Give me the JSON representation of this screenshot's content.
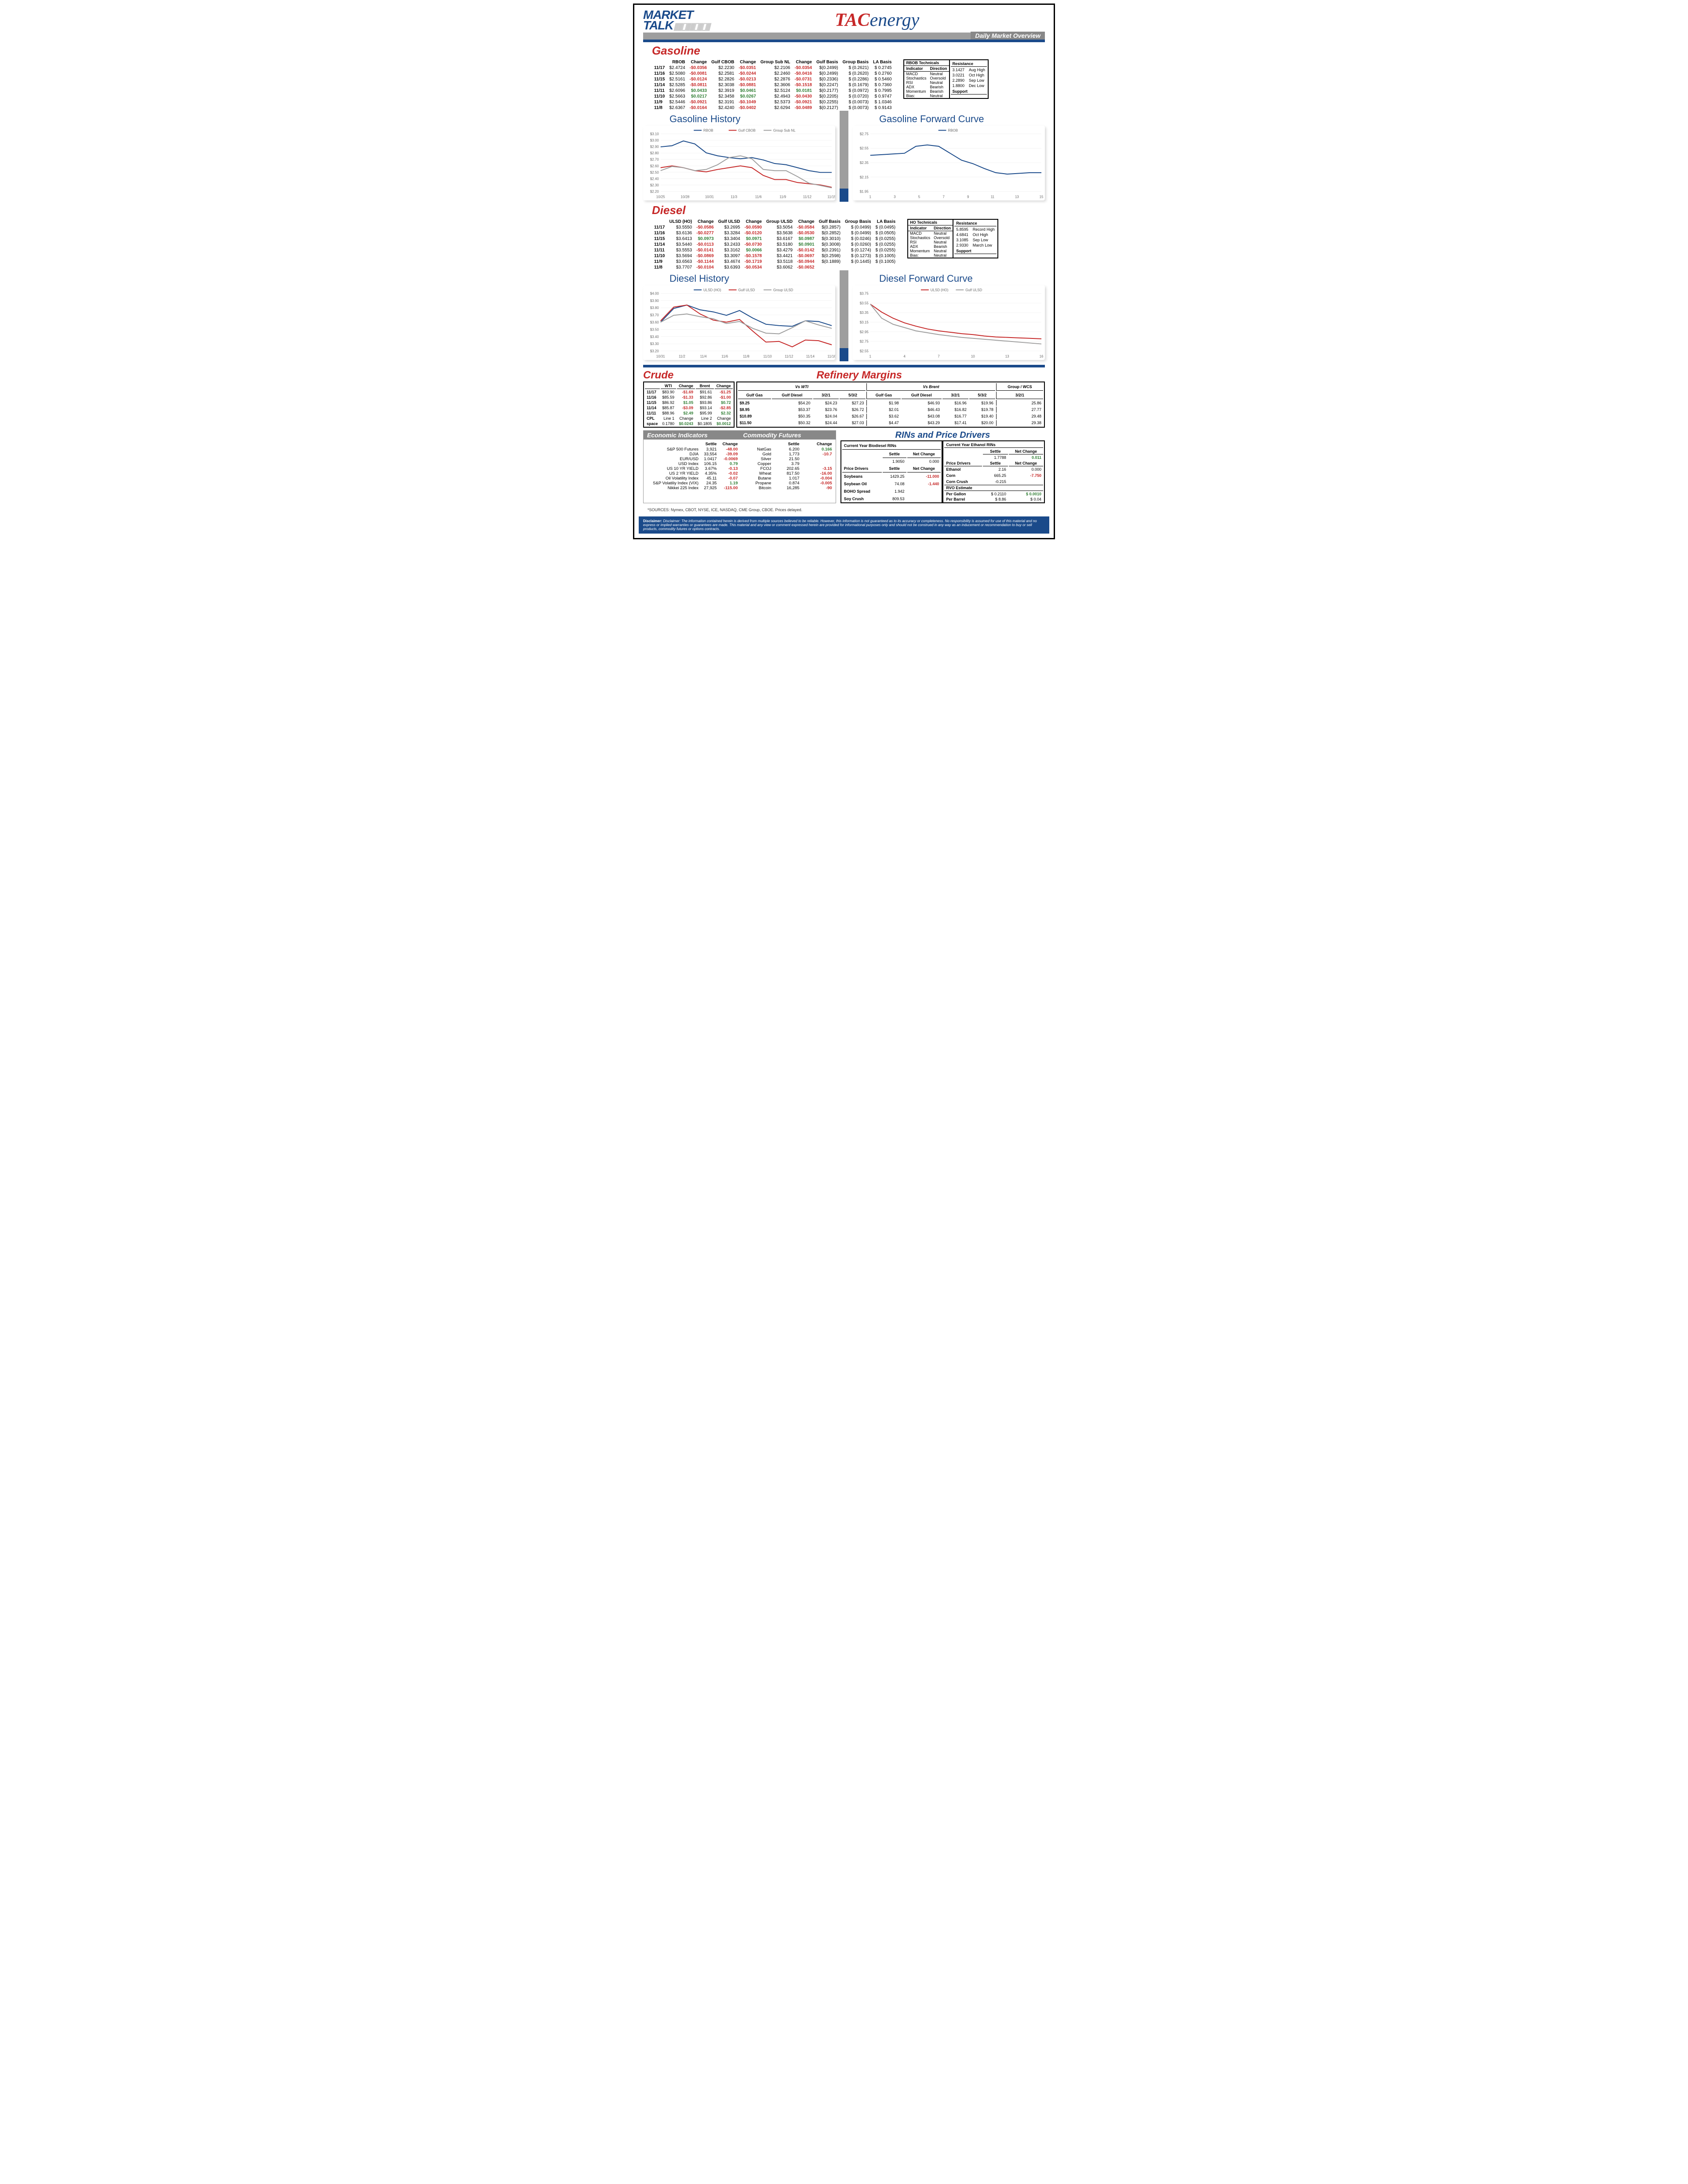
{
  "header": {
    "market": "MARKET",
    "talk": "TALK",
    "tac": "TAC",
    "energy": "energy",
    "overview": "Daily Market Overview"
  },
  "gasoline": {
    "title": "Gasoline",
    "columns": [
      "",
      "RBOB",
      "Change",
      "Gulf CBOB",
      "Change",
      "Group Sub NL",
      "Change",
      "Gulf Basis",
      "Group Basis",
      "LA Basis"
    ],
    "rows": [
      [
        "11/17",
        "$2.4724",
        "-$0.0356",
        "$2.2230",
        "-$0.0351",
        "$2.2106",
        "-$0.0354",
        "$(0.2499)",
        "$   (0.2621)",
        "$   0.2745"
      ],
      [
        "11/16",
        "$2.5080",
        "-$0.0081",
        "$2.2581",
        "-$0.0244",
        "$2.2460",
        "-$0.0416",
        "$(0.2499)",
        "$   (0.2620)",
        "$   0.2760"
      ],
      [
        "11/15",
        "$2.5161",
        "-$0.0124",
        "$2.2826",
        "-$0.0213",
        "$2.2876",
        "-$0.0731",
        "$(0.2336)",
        "$   (0.2286)",
        "$   0.5460"
      ],
      [
        "11/14",
        "$2.5285",
        "-$0.0811",
        "$2.3038",
        "-$0.0881",
        "$2.3606",
        "-$0.1518",
        "$(0.2247)",
        "$   (0.1679)",
        "$   0.7360"
      ],
      [
        "11/11",
        "$2.6096",
        "$0.0433",
        "$2.3919",
        "$0.0461",
        "$2.5124",
        "$0.0181",
        "$(0.2177)",
        "$   (0.0972)",
        "$   0.7995"
      ],
      [
        "11/10",
        "$2.5663",
        "$0.0217",
        "$2.3458",
        "$0.0267",
        "$2.4943",
        "-$0.0430",
        "$(0.2205)",
        "$   (0.0720)",
        "$   0.9747"
      ],
      [
        "11/9",
        "$2.5446",
        "-$0.0921",
        "$2.3191",
        "-$0.1049",
        "$2.5373",
        "-$0.0921",
        "$(0.2255)",
        "$   (0.0073)",
        "$   1.0346"
      ],
      [
        "11/8",
        "$2.6367",
        "-$0.0164",
        "$2.4240",
        "-$0.0402",
        "$2.6294",
        "-$0.0489",
        "$(0.2127)",
        "$   (0.0073)",
        "$   0.9143"
      ]
    ],
    "changeIsNeg": [
      [
        true,
        true,
        true
      ],
      [
        true,
        true,
        true
      ],
      [
        true,
        true,
        true
      ],
      [
        true,
        true,
        true
      ],
      [
        false,
        false,
        false
      ],
      [
        false,
        false,
        true
      ],
      [
        true,
        true,
        true
      ],
      [
        true,
        true,
        true
      ]
    ],
    "tech": {
      "title": "RBOB Technicals",
      "headers": [
        "Indicator",
        "Direction"
      ],
      "rows": [
        [
          "MACD",
          "Neutral"
        ],
        [
          "Stochastics",
          "Oversold"
        ],
        [
          "RSI",
          "Neutral"
        ],
        [
          "ADX",
          "Bearish"
        ],
        [
          "Momentum",
          "Bearish"
        ],
        [
          "Bias:",
          "Neutral"
        ]
      ]
    },
    "resistance": {
      "title": "Resistance",
      "rows": [
        [
          "3.1427",
          "Aug High"
        ],
        [
          "3.0221",
          "Oct High"
        ],
        [
          "2.2890",
          "Sep Low"
        ],
        [
          "1.8800",
          "Dec Low"
        ]
      ],
      "support": "Support"
    }
  },
  "gasolineHistory": {
    "title": "Gasoline History",
    "xlabels": [
      "10/25",
      "10/28",
      "10/31",
      "11/3",
      "11/6",
      "11/9",
      "11/12",
      "11/15"
    ],
    "ylabels": [
      "$2.20",
      "$2.30",
      "$2.40",
      "$2.50",
      "$2.60",
      "$2.70",
      "$2.80",
      "$2.90",
      "$3.00",
      "$3.10"
    ],
    "ylim": [
      2.15,
      3.12
    ],
    "legend": [
      [
        "RBOB",
        "#1a4a8a"
      ],
      [
        "Gulf CBOB",
        "#c62828"
      ],
      [
        "Group Sub NL",
        "#9e9e9e"
      ]
    ],
    "series": {
      "rbob": [
        2.9,
        2.92,
        3.0,
        2.95,
        2.8,
        2.75,
        2.72,
        2.7,
        2.72,
        2.68,
        2.62,
        2.6,
        2.55,
        2.5,
        2.47,
        2.47
      ],
      "cbob": [
        2.55,
        2.58,
        2.55,
        2.5,
        2.48,
        2.52,
        2.55,
        2.58,
        2.55,
        2.42,
        2.35,
        2.35,
        2.3,
        2.28,
        2.26,
        2.22
      ],
      "group": [
        2.5,
        2.57,
        2.55,
        2.5,
        2.52,
        2.6,
        2.72,
        2.75,
        2.7,
        2.52,
        2.5,
        2.5,
        2.4,
        2.29,
        2.25,
        2.21
      ]
    }
  },
  "gasolineForward": {
    "title": "Gasoline Forward Curve",
    "xlabels": [
      "1",
      "3",
      "5",
      "7",
      "9",
      "11",
      "13",
      "15"
    ],
    "ylabels": [
      "$1.95",
      "$2.15",
      "$2.35",
      "$2.55",
      "$2.75"
    ],
    "ylim": [
      1.95,
      2.78
    ],
    "legend": [
      [
        "RBOB",
        "#1a4a8a"
      ]
    ],
    "series": {
      "rbob": [
        2.47,
        2.48,
        2.49,
        2.5,
        2.6,
        2.62,
        2.6,
        2.5,
        2.4,
        2.35,
        2.28,
        2.22,
        2.2,
        2.21,
        2.22,
        2.22
      ]
    }
  },
  "diesel": {
    "title": "Diesel",
    "columns": [
      "",
      "ULSD (HO)",
      "Change",
      "Gulf ULSD",
      "Change",
      "Group ULSD",
      "Change",
      "Gulf Basis",
      "Group Basis",
      "LA Basis"
    ],
    "rows": [
      [
        "11/17",
        "$3.5550",
        "-$0.0586",
        "$3.2695",
        "-$0.0590",
        "$3.5054",
        "-$0.0584",
        "$(0.2857)",
        "$   (0.0499)",
        "$  (0.0495)"
      ],
      [
        "11/16",
        "$3.6136",
        "-$0.0277",
        "$3.3284",
        "-$0.0120",
        "$3.5638",
        "-$0.0530",
        "$(0.2852)",
        "$   (0.0499)",
        "$  (0.0505)"
      ],
      [
        "11/15",
        "$3.6413",
        "$0.0973",
        "$3.3404",
        "$0.0971",
        "$3.6167",
        "$0.0987",
        "$(0.3010)",
        "$   (0.0246)",
        "$  (0.0255)"
      ],
      [
        "11/14",
        "$3.5440",
        "-$0.0113",
        "$3.2433",
        "-$0.0730",
        "$3.5180",
        "$0.0901",
        "$(0.3008)",
        "$   (0.0260)",
        "$  (0.0255)"
      ],
      [
        "11/11",
        "$3.5553",
        "-$0.0141",
        "$3.3162",
        "$0.0066",
        "$3.4279",
        "-$0.0142",
        "$(0.2391)",
        "$   (0.1274)",
        "$  (0.0255)"
      ],
      [
        "11/10",
        "$3.5694",
        "-$0.0869",
        "$3.3097",
        "-$0.1578",
        "$3.4421",
        "-$0.0697",
        "$(0.2598)",
        "$   (0.1273)",
        "$  (0.1005)"
      ],
      [
        "11/9",
        "$3.6563",
        "-$0.1144",
        "$3.4674",
        "-$0.1719",
        "$3.5118",
        "-$0.0944",
        "$(0.1889)",
        "$   (0.1445)",
        "$  (0.1005)"
      ],
      [
        "11/8",
        "$3.7707",
        "-$0.0104",
        "$3.6393",
        "-$0.0534",
        "$3.6062",
        "-$0.0652",
        "",
        "",
        ""
      ]
    ],
    "changeIsNeg": [
      [
        true,
        true,
        true
      ],
      [
        true,
        true,
        true
      ],
      [
        false,
        false,
        false
      ],
      [
        true,
        true,
        false
      ],
      [
        true,
        false,
        true
      ],
      [
        true,
        true,
        true
      ],
      [
        true,
        true,
        true
      ],
      [
        true,
        true,
        true
      ]
    ],
    "tech": {
      "title": "HO Technicals",
      "headers": [
        "Indicator",
        "Direction"
      ],
      "rows": [
        [
          "MACD",
          "Neutral"
        ],
        [
          "Stochastics",
          "Oversold"
        ],
        [
          "RSI",
          "Neutral"
        ],
        [
          "ADX",
          "Bearish"
        ],
        [
          "Momentum",
          "Neutral"
        ],
        [
          "Bias:",
          "Neutral"
        ]
      ]
    },
    "resistance": {
      "title": "Resistance",
      "rows": [
        [
          "5.8595",
          "Record High"
        ],
        [
          "4.6841",
          "Oct High"
        ],
        [
          "3.1085",
          "Sep Low"
        ],
        [
          "2.9330",
          "March Low"
        ]
      ],
      "support": "Support"
    }
  },
  "dieselHistory": {
    "title": "Diesel History",
    "xlabels": [
      "10/31",
      "11/2",
      "11/4",
      "11/6",
      "11/8",
      "11/10",
      "11/12",
      "11/14",
      "11/16"
    ],
    "ylabels": [
      "$3.20",
      "$3.30",
      "$3.40",
      "$3.50",
      "$3.60",
      "$3.70",
      "$3.80",
      "$3.90",
      "$4.00"
    ],
    "ylim": [
      3.18,
      4.02
    ],
    "legend": [
      [
        "ULSD (HO)",
        "#1a4a8a"
      ],
      [
        "Gulf ULSD",
        "#c62828"
      ],
      [
        "Group ULSD",
        "#9e9e9e"
      ]
    ],
    "series": {
      "ulsd": [
        3.6,
        3.8,
        3.85,
        3.78,
        3.75,
        3.7,
        3.77,
        3.66,
        3.57,
        3.55,
        3.54,
        3.62,
        3.61,
        3.55
      ],
      "gulf": [
        3.62,
        3.82,
        3.85,
        3.72,
        3.63,
        3.6,
        3.64,
        3.47,
        3.31,
        3.32,
        3.24,
        3.34,
        3.33,
        3.27
      ],
      "group": [
        3.6,
        3.7,
        3.72,
        3.68,
        3.65,
        3.58,
        3.61,
        3.51,
        3.44,
        3.43,
        3.52,
        3.62,
        3.56,
        3.51
      ]
    }
  },
  "dieselForward": {
    "title": "Diesel Forward Curve",
    "xlabels": [
      "1",
      "4",
      "7",
      "10",
      "13",
      "16"
    ],
    "ylabels": [
      "$2.55",
      "$2.75",
      "$2.95",
      "$3.15",
      "$3.35",
      "$3.55",
      "$3.75"
    ],
    "ylim": [
      2.55,
      3.78
    ],
    "legend": [
      [
        "ULSD (HO)",
        "#c62828"
      ],
      [
        "Gulf ULSD",
        "#9e9e9e"
      ]
    ],
    "series": {
      "ulsd": [
        3.55,
        3.38,
        3.25,
        3.15,
        3.08,
        3.02,
        2.98,
        2.95,
        2.92,
        2.9,
        2.87,
        2.85,
        2.84,
        2.83,
        2.82,
        2.81
      ],
      "gulf": [
        3.55,
        3.25,
        3.12,
        3.05,
        2.98,
        2.94,
        2.9,
        2.87,
        2.84,
        2.82,
        2.8,
        2.78,
        2.76,
        2.74,
        2.72,
        2.7
      ]
    }
  },
  "crude": {
    "title": "Crude",
    "headers": [
      "",
      "WTI",
      "Change",
      "Brent",
      "Change"
    ],
    "rows": [
      [
        "11/17",
        "$83.90",
        "-$1.69",
        "$91.61",
        "-$1.25"
      ],
      [
        "11/16",
        "$85.59",
        "-$1.33",
        "$92.86",
        "-$1.00"
      ],
      [
        "11/15",
        "$86.92",
        "$1.05",
        "$93.86",
        "$0.72"
      ],
      [
        "11/14",
        "$85.87",
        "-$3.09",
        "$93.14",
        "-$2.85"
      ],
      [
        "11/11",
        "$88.96",
        "$2.49",
        "$95.99",
        "$2.32"
      ]
    ],
    "changeNeg": [
      [
        true,
        true
      ],
      [
        true,
        true
      ],
      [
        false,
        false
      ],
      [
        true,
        true
      ],
      [
        false,
        false
      ]
    ],
    "cpl": {
      "label": "CPL",
      "sub": "space",
      "l1h": "Line 1",
      "l1c": "Change",
      "l2h": "Line 2",
      "l2c": "Change",
      "l1": "0.1780",
      "c1": "$0.0243",
      "l2": "$0.1805",
      "c2": "$0.0012"
    }
  },
  "refinery": {
    "title": "Refinery Margins",
    "vswti": "Vs WTI",
    "vsbrent": "Vs Brent",
    "grpwcs": "Group / WCS",
    "cols_wti": [
      "Gulf Gas",
      "Gulf Diesel",
      "3/2/1",
      "5/3/2"
    ],
    "cols_brent": [
      "Gulf Gas",
      "Gulf Diesel",
      "3/2/1",
      "5/3/2"
    ],
    "col_wcs": "3/2/1",
    "rows": [
      [
        "$9.25",
        "$54.20",
        "$24.23",
        "$27.23",
        "$1.98",
        "$46.93",
        "$16.96",
        "$19.96",
        "25.86"
      ],
      [
        "$8.95",
        "$53.37",
        "$23.76",
        "$26.72",
        "$2.01",
        "$46.43",
        "$16.82",
        "$19.78",
        "27.77"
      ],
      [
        "$10.89",
        "$50.35",
        "$24.04",
        "$26.67",
        "$3.62",
        "$43.08",
        "$16.77",
        "$19.40",
        "29.48"
      ],
      [
        "$11.50",
        "$50.32",
        "$24.44",
        "$27.03",
        "$4.47",
        "$43.29",
        "$17.41",
        "$20.00",
        "29.38"
      ]
    ]
  },
  "econ": {
    "title": "Economic Indicators",
    "headers": [
      "",
      "Settle",
      "Change"
    ],
    "rows": [
      [
        "S&P 500 Futures",
        "3,921",
        "-48.00",
        true
      ],
      [
        "DJIA",
        "33,554",
        "-39.09",
        true
      ],
      [
        "EUR/USD",
        "1.0417",
        "-0.0069",
        true
      ],
      [
        "USD Index",
        "106.15",
        "0.79",
        false
      ],
      [
        "US 10 YR YIELD",
        "3.67%",
        "-0.13",
        true
      ],
      [
        "US 2 YR YIELD",
        "4.35%",
        "-0.02",
        true
      ],
      [
        "Oil Volatility Index",
        "45.11",
        "-0.07",
        true
      ],
      [
        "S&P Volatiliy Index (VIX)",
        "24.35",
        "1.19",
        false
      ],
      [
        "Nikkei 225 Index",
        "27,925",
        "-115.00",
        true
      ]
    ]
  },
  "comm": {
    "title": "Commodity Futures",
    "headers": [
      "",
      "Settle",
      "Change"
    ],
    "rows": [
      [
        "NatGas",
        "6.200",
        "0.166",
        false
      ],
      [
        "Gold",
        "1,773",
        "-10.7",
        true
      ],
      [
        "Silver",
        "21.50",
        "",
        null
      ],
      [
        "Copper",
        "3.79",
        "",
        null
      ],
      [
        "FCOJ",
        "202.65",
        "-3.15",
        true
      ],
      [
        "Wheat",
        "817.50",
        "-16.00",
        true
      ],
      [
        "Butane",
        "1.017",
        "-0.004",
        true
      ],
      [
        "Propane",
        "0.874",
        "-0.005",
        true
      ],
      [
        "Bitcoin",
        "16,285",
        "-90",
        true
      ]
    ]
  },
  "rins": {
    "title": "RINs and Price Drivers",
    "bio_title": "Current Year Biodiesel RINs",
    "eth_title": "Current Year Ethanol RINs",
    "settle_h": "Settle",
    "netchg_h": "Net Change",
    "bio_settle": "1.9050",
    "bio_chg": "0.000",
    "eth_settle": "1.7788",
    "eth_chg": "0.011",
    "pd_title": "Price Drivers",
    "left_rows": [
      [
        "Soybeans",
        "1429.25",
        "-11.000",
        true
      ],
      [
        "",
        "",
        "",
        null
      ],
      [
        "Soybean Oil",
        "74.08",
        "-1.440",
        true
      ],
      [
        "",
        "",
        "",
        null
      ],
      [
        "BOHO Spread",
        "1.942",
        "",
        null
      ],
      [
        "",
        "",
        "",
        null
      ],
      [
        "Soy Crush",
        "809.53",
        "",
        null
      ]
    ],
    "right_rows": [
      [
        "Ethanol",
        "2.16",
        "0.000",
        null
      ],
      [
        "",
        "",
        "",
        null
      ],
      [
        "Corn",
        "665.25",
        "-7.750",
        true
      ],
      [
        "",
        "",
        "",
        null
      ],
      [
        "Corn Crush",
        "-0.215",
        "",
        null
      ]
    ],
    "rvo_title": "RVO Estimate",
    "rvo_rows": [
      [
        "Per Gallon",
        "$   0.2110",
        "$       0.0010",
        false
      ],
      [
        "Per Barrel",
        "$      8.86",
        "$          0.04",
        null
      ]
    ]
  },
  "footnote": "*SOURCES: Nymex, CBOT, NYSE, ICE, NASDAQ, CME Group, CBOE.    Prices delayed.",
  "disclaimer": "Disclaimer: The information contained herein is derived from multiple sources believed to be reliable.  However, this information is not guaranteed as to its accuracy or completeness. No responsibility is assumed for use of this material and no express or implied warranties or guarantees are made. This material and any view or comment expressed herein are provided for informational purposes only and should not be construed in any way as an inducement or recommendation to buy or sell products, commodity futures or options contracts."
}
